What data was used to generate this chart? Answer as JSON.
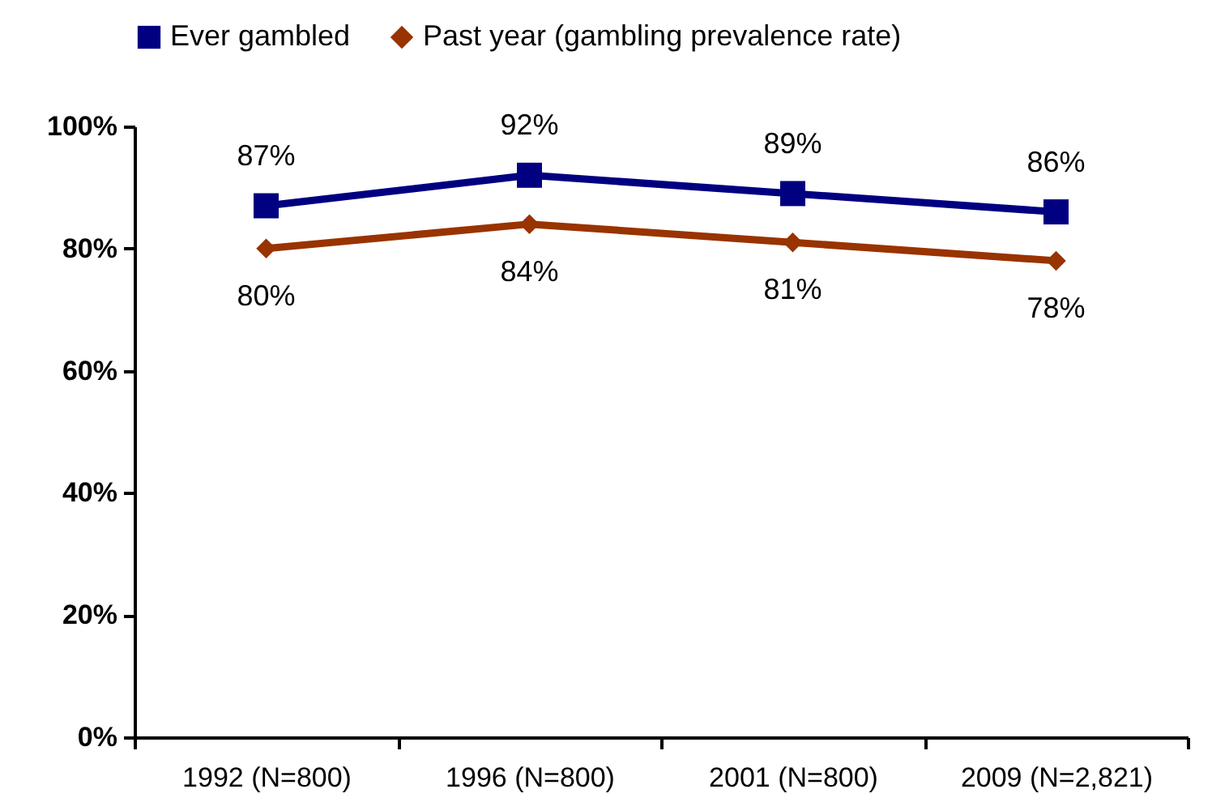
{
  "chart_data": {
    "type": "line",
    "categories": [
      "1992 (N=800)",
      "1996 (N=800)",
      "2001 (N=800)",
      "2009 (N=2,821)"
    ],
    "series": [
      {
        "name": "Ever gambled",
        "color": "#000080",
        "marker": "square",
        "values": [
          87,
          92,
          89,
          86
        ],
        "value_labels": [
          "87%",
          "92%",
          "89%",
          "86%"
        ]
      },
      {
        "name": "Past year (gambling prevalence rate)",
        "color": "#993300",
        "marker": "diamond",
        "values": [
          80,
          84,
          81,
          78
        ],
        "value_labels": [
          "80%",
          "84%",
          "81%",
          "78%"
        ]
      }
    ],
    "ylim": [
      0,
      100
    ],
    "yticks": [
      {
        "value": 0,
        "label": "0%"
      },
      {
        "value": 20,
        "label": "20%"
      },
      {
        "value": 40,
        "label": "40%"
      },
      {
        "value": 60,
        "label": "60%"
      },
      {
        "value": 80,
        "label": "80%"
      },
      {
        "value": 100,
        "label": "100%"
      }
    ],
    "grid": false,
    "legend": "top",
    "line_style": "solid"
  }
}
